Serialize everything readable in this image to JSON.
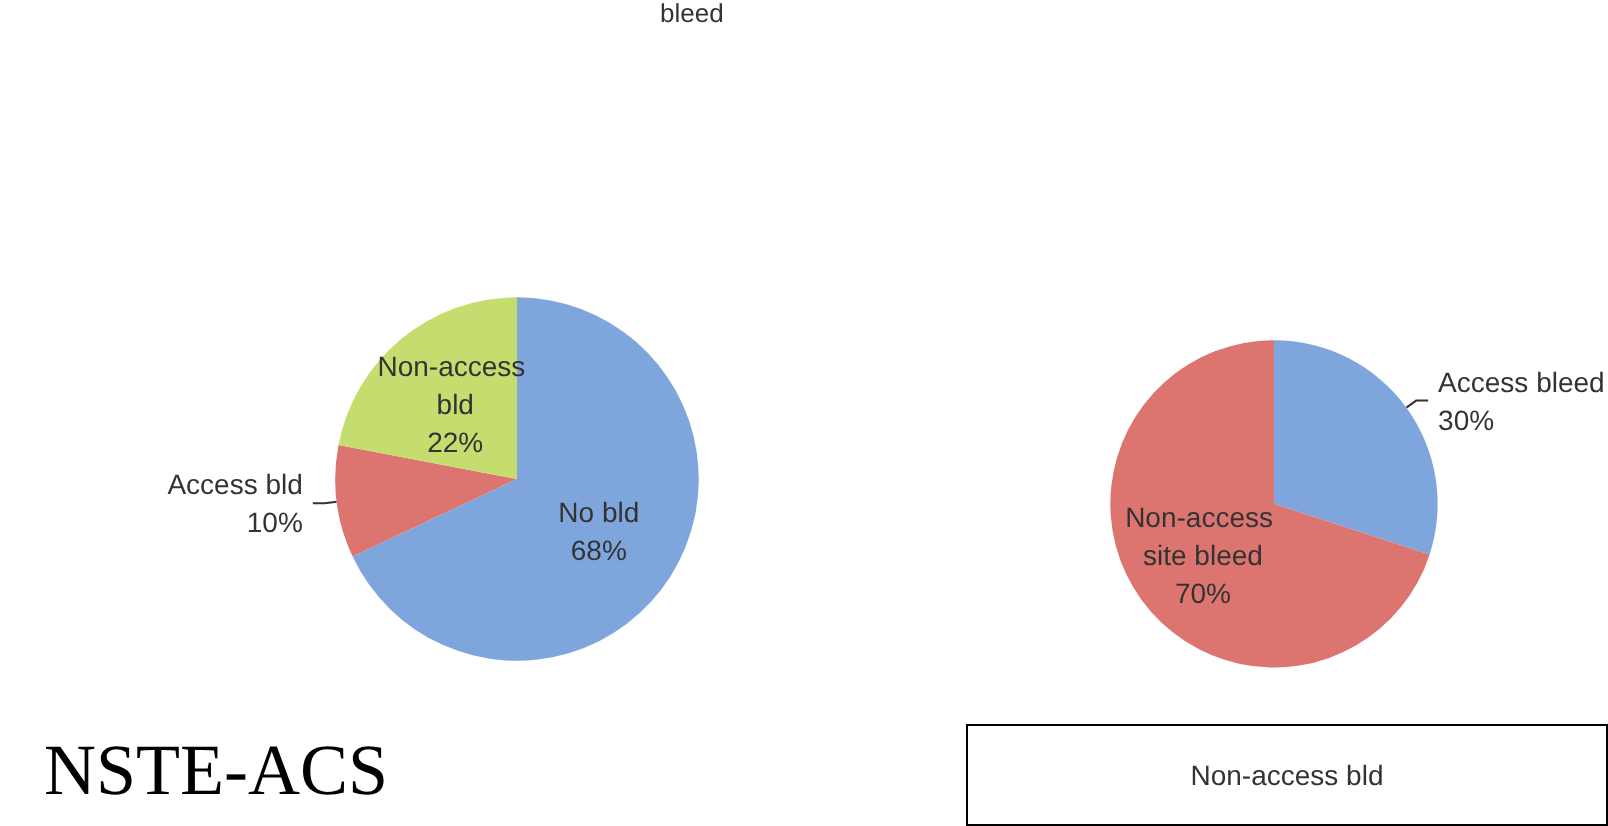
{
  "chart_data": [
    {
      "type": "pie",
      "categories": [
        "No bld",
        "Access bld",
        "Non-access bld"
      ],
      "values": [
        68,
        10,
        22
      ],
      "value_labels": [
        "68%",
        "10%",
        "22%"
      ],
      "colors": [
        "#7fa6dc",
        "#dc7470",
        "#c5dc6e"
      ],
      "annotations": [
        "NSTE-ACS",
        "bleed"
      ]
    },
    {
      "type": "pie",
      "categories": [
        "Access bleed",
        "Non-access site bleed"
      ],
      "values": [
        30,
        70
      ],
      "value_labels": [
        "30%",
        "70%"
      ],
      "colors": [
        "#7fa6dc",
        "#dc7470"
      ],
      "annotations": [
        "Non-access bld"
      ]
    }
  ]
}
